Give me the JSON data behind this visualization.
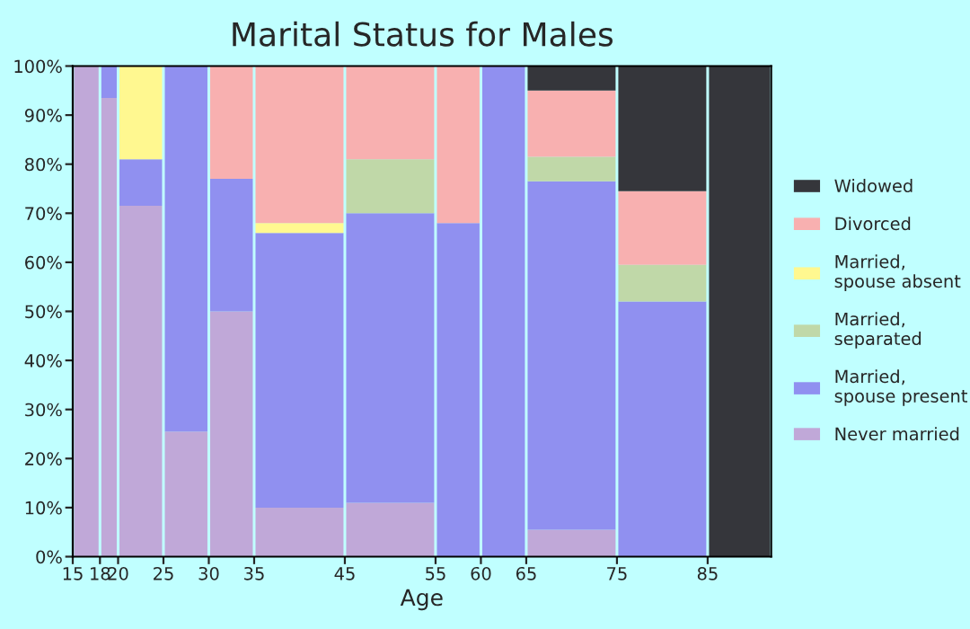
{
  "chart_data": {
    "type": "bar",
    "stacked": true,
    "title": "Marital Status for Males",
    "xlabel": "Age",
    "x": [
      16.5,
      19,
      22.5,
      27.5,
      32.5,
      40,
      50,
      57.5,
      62.5,
      70,
      80,
      88.5
    ],
    "xlim": [
      15,
      92
    ],
    "xticks": [
      15,
      18,
      20,
      25,
      30,
      35,
      45,
      55,
      60,
      65,
      75,
      85
    ],
    "ylim": [
      0,
      100
    ],
    "yticks": [
      {
        "value": 0,
        "label": "0%"
      },
      {
        "value": 10,
        "label": "10%"
      },
      {
        "value": 20,
        "label": "20%"
      },
      {
        "value": 30,
        "label": "30%"
      },
      {
        "value": 40,
        "label": "40%"
      },
      {
        "value": 50,
        "label": "50%"
      },
      {
        "value": 60,
        "label": "60%"
      },
      {
        "value": 70,
        "label": "70%"
      },
      {
        "value": 80,
        "label": "80%"
      },
      {
        "value": 90,
        "label": "90%"
      },
      {
        "value": 100,
        "label": "100%"
      }
    ],
    "legend": "right",
    "series": [
      {
        "name": "Never married",
        "color": "#c0a8d8",
        "values": [
          100,
          93.5,
          71.5,
          25.5,
          50,
          10,
          11,
          null,
          null,
          5.5,
          null,
          null
        ]
      },
      {
        "name": "Married,\nspouse present",
        "color": "#9090f0",
        "values": [
          null,
          6.5,
          9.5,
          74.5,
          27,
          56,
          59,
          68,
          100,
          71,
          52,
          null
        ]
      },
      {
        "name": "Married,\nseparated",
        "color": "#c0d8a8",
        "values": [
          null,
          null,
          null,
          null,
          null,
          null,
          11,
          null,
          null,
          5,
          7.5,
          null
        ]
      },
      {
        "name": "Married,\nspouse absent",
        "color": "#fff890",
        "values": [
          null,
          null,
          19,
          null,
          null,
          2,
          null,
          null,
          null,
          null,
          null,
          null
        ]
      },
      {
        "name": "Divorced",
        "color": "#f8b0b0",
        "values": [
          null,
          null,
          null,
          null,
          23,
          32,
          19,
          32,
          null,
          13.5,
          15,
          null
        ]
      },
      {
        "name": "Widowed",
        "color": "#35363b",
        "values": [
          null,
          null,
          null,
          null,
          null,
          null,
          null,
          null,
          null,
          5,
          25.5,
          100
        ]
      }
    ]
  }
}
